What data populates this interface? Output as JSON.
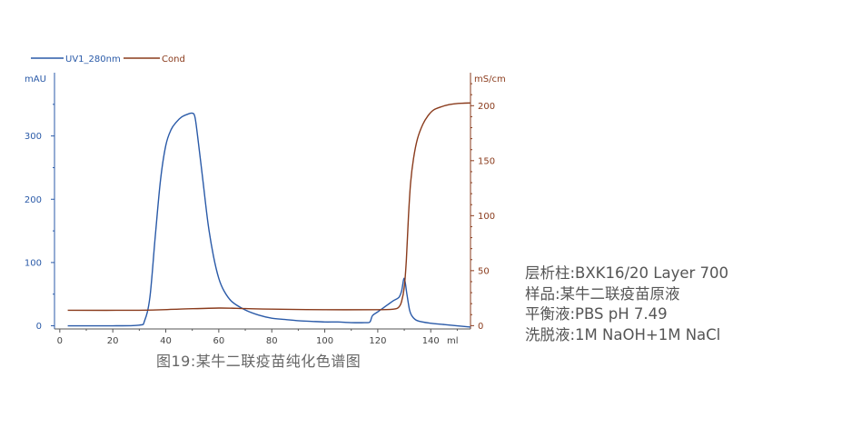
{
  "chart_data": {
    "type": "line",
    "legend": {
      "placement": "top-left",
      "entries": [
        "UV1_280nm",
        "Cond"
      ]
    },
    "x": {
      "label": "ml",
      "range": [
        -2,
        155
      ],
      "ticks": [
        0,
        20,
        40,
        60,
        80,
        100,
        120,
        140
      ]
    },
    "y_left": {
      "unit": "mAU",
      "range": [
        -5,
        400
      ],
      "ticks": [
        0,
        100,
        200,
        300
      ]
    },
    "y_right": {
      "unit": "mS/cm",
      "range": [
        -3,
        230
      ],
      "ticks": [
        0,
        50,
        100,
        150,
        200
      ]
    },
    "series": [
      {
        "name": "UV1_280nm",
        "color": "#2a5aa8",
        "axis": "left",
        "points": [
          [
            3,
            0
          ],
          [
            20,
            0
          ],
          [
            30,
            1
          ],
          [
            32,
            8
          ],
          [
            34,
            45
          ],
          [
            36,
            140
          ],
          [
            38,
            230
          ],
          [
            40,
            285
          ],
          [
            42,
            310
          ],
          [
            44,
            322
          ],
          [
            46,
            330
          ],
          [
            48,
            334
          ],
          [
            50,
            336
          ],
          [
            51,
            330
          ],
          [
            52,
            300
          ],
          [
            54,
            230
          ],
          [
            56,
            160
          ],
          [
            58,
            110
          ],
          [
            60,
            75
          ],
          [
            62,
            55
          ],
          [
            65,
            38
          ],
          [
            70,
            25
          ],
          [
            75,
            17
          ],
          [
            80,
            12
          ],
          [
            85,
            10
          ],
          [
            90,
            8
          ],
          [
            95,
            7
          ],
          [
            100,
            6
          ],
          [
            105,
            6
          ],
          [
            110,
            5
          ],
          [
            115,
            5
          ],
          [
            117,
            6
          ],
          [
            118,
            16
          ],
          [
            120,
            22
          ],
          [
            122,
            28
          ],
          [
            124,
            34
          ],
          [
            126,
            40
          ],
          [
            128,
            45
          ],
          [
            129,
            55
          ],
          [
            130,
            75
          ],
          [
            131,
            50
          ],
          [
            132,
            25
          ],
          [
            133,
            15
          ],
          [
            135,
            8
          ],
          [
            140,
            4
          ],
          [
            145,
            2
          ],
          [
            150,
            0
          ],
          [
            155,
            -2
          ]
        ]
      },
      {
        "name": "Cond",
        "color": "#8a3b1c",
        "axis": "right",
        "points": [
          [
            3,
            14
          ],
          [
            30,
            14
          ],
          [
            45,
            15
          ],
          [
            60,
            16
          ],
          [
            70,
            15.5
          ],
          [
            80,
            15
          ],
          [
            100,
            14.5
          ],
          [
            120,
            14.5
          ],
          [
            126,
            15
          ],
          [
            128,
            17
          ],
          [
            129,
            22
          ],
          [
            130,
            35
          ],
          [
            130.8,
            60
          ],
          [
            131.6,
            100
          ],
          [
            132.4,
            130
          ],
          [
            133.5,
            152
          ],
          [
            135,
            170
          ],
          [
            137,
            183
          ],
          [
            139,
            191
          ],
          [
            141,
            196
          ],
          [
            144,
            199
          ],
          [
            147,
            201
          ],
          [
            150,
            202
          ],
          [
            155,
            202.5
          ]
        ]
      }
    ]
  },
  "caption": "图19:某牛二联疫苗纯化色谱图",
  "info": {
    "column": "层析柱:BXK16/20 Layer 700",
    "sample": "样品:某牛二联疫苗原液",
    "buffer": "平衡液:PBS pH 7.49",
    "elution": "洗脱液:1M NaOH+1M NaCl"
  }
}
